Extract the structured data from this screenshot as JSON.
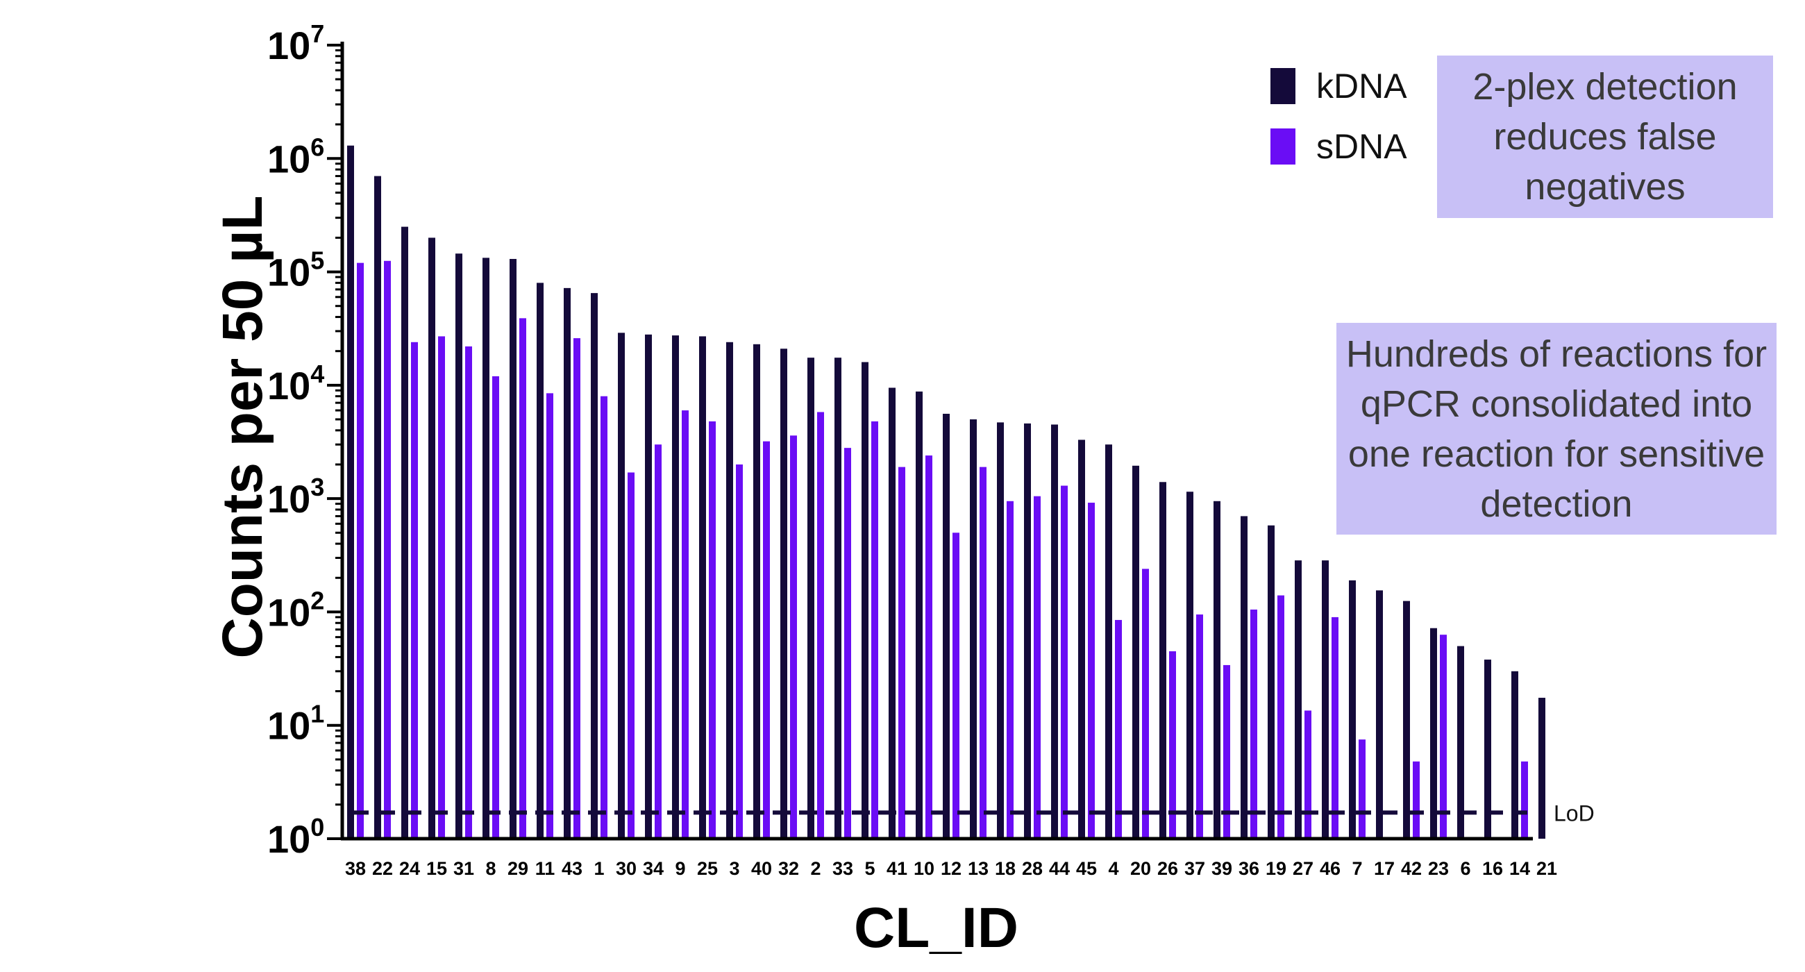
{
  "chart_data": {
    "type": "bar",
    "scale": "log",
    "xlabel": "CL_ID",
    "ylabel": "Counts per 50 µL",
    "ylim": [
      1,
      10000000
    ],
    "y_ticks": [
      {
        "base": "10",
        "exp": "0"
      },
      {
        "base": "10",
        "exp": "1"
      },
      {
        "base": "10",
        "exp": "2"
      },
      {
        "base": "10",
        "exp": "3"
      },
      {
        "base": "10",
        "exp": "4"
      },
      {
        "base": "10",
        "exp": "5"
      },
      {
        "base": "10",
        "exp": "6"
      },
      {
        "base": "10",
        "exp": "7"
      }
    ],
    "categories": [
      "38",
      "22",
      "24",
      "15",
      "31",
      "8",
      "29",
      "11",
      "43",
      "1",
      "30",
      "34",
      "9",
      "25",
      "3",
      "40",
      "32",
      "2",
      "33",
      "5",
      "41",
      "10",
      "12",
      "13",
      "18",
      "28",
      "44",
      "45",
      "4",
      "20",
      "26",
      "37",
      "39",
      "36",
      "19",
      "27",
      "46",
      "7",
      "17",
      "42",
      "23",
      "6",
      "16",
      "14",
      "21"
    ],
    "series": [
      {
        "name": "kDNA",
        "color": "#140a3a",
        "values": [
          1300000,
          700000,
          250000,
          200000,
          145000,
          133000,
          130000,
          80000,
          72000,
          65000,
          29000,
          28000,
          27500,
          27000,
          24000,
          23000,
          21000,
          17500,
          17500,
          16000,
          9500,
          8800,
          5600,
          5000,
          4700,
          4600,
          4500,
          3300,
          3000,
          1950,
          1400,
          1150,
          950,
          700,
          580,
          285,
          285,
          190,
          155,
          125,
          72,
          50,
          38,
          30,
          17.5
        ]
      },
      {
        "name": "sDNA",
        "color": "#6a0df5",
        "values": [
          120000,
          125000,
          24000,
          27000,
          22000,
          12000,
          39000,
          8500,
          26000,
          8000,
          1700,
          3000,
          6000,
          4800,
          2000,
          3200,
          3600,
          5800,
          2800,
          4800,
          1900,
          2400,
          500,
          1900,
          950,
          1050,
          1300,
          920,
          85,
          240,
          45,
          95,
          34,
          105,
          140,
          13.5,
          90,
          7.5,
          null,
          4.8,
          63,
          null,
          null,
          4.8,
          null
        ]
      }
    ],
    "reference_line": {
      "label": "LoD",
      "value": 1.7,
      "style": "dashed"
    },
    "legend": {
      "position": "top-right",
      "entries": [
        "kDNA",
        "sDNA"
      ]
    }
  },
  "annotations": {
    "callout_1": "2-plex detection reduces false negatives",
    "callout_2": "Hundreds of reactions for qPCR consolidated into one reaction for sensitive detection"
  }
}
